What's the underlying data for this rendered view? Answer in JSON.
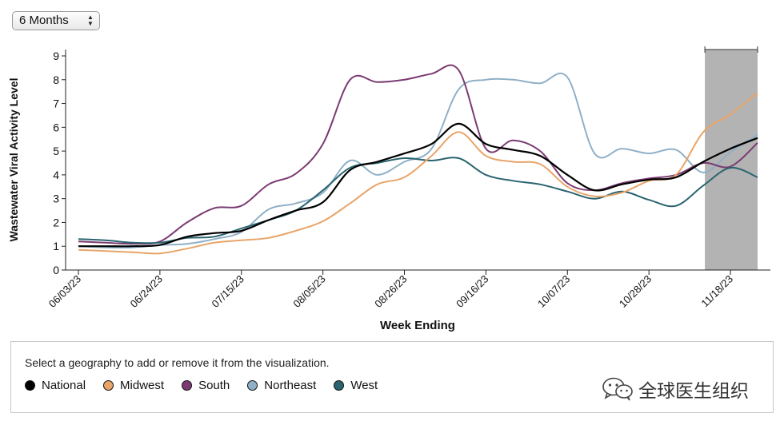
{
  "controls": {
    "range_label": "6 Months"
  },
  "legend": {
    "prompt": "Select a geography to add or remove it from the visualization."
  },
  "watermark": {
    "text": "全球医生组织",
    "icon": "wechat-icon"
  },
  "colors": {
    "National": "#000000",
    "Midwest": "#e8a468",
    "South": "#7b3b72",
    "Northeast": "#8fb0c7",
    "West": "#2a6470",
    "highlight": "#b3b3b3"
  },
  "chart_data": {
    "type": "line",
    "xlabel": "Week Ending",
    "ylabel": "Wastewater Viral Activity Level",
    "ylim": [
      0,
      9
    ],
    "yticks": [
      0,
      1,
      2,
      3,
      4,
      5,
      6,
      7,
      8,
      9
    ],
    "x_tick_labels": [
      "06/03/23",
      "06/24/23",
      "07/15/23",
      "08/05/23",
      "08/26/23",
      "09/16/23",
      "10/07/23",
      "10/28/23",
      "11/18/23"
    ],
    "x": [
      "06/03/23",
      "06/10/23",
      "06/17/23",
      "06/24/23",
      "07/01/23",
      "07/08/23",
      "07/15/23",
      "07/22/23",
      "07/29/23",
      "08/05/23",
      "08/12/23",
      "08/19/23",
      "08/26/23",
      "09/02/23",
      "09/09/23",
      "09/16/23",
      "09/23/23",
      "09/30/23",
      "10/07/23",
      "10/14/23",
      "10/21/23",
      "10/28/23",
      "11/04/23",
      "11/11/23",
      "11/18/23",
      "11/25/23"
    ],
    "highlight_range": [
      "11/11/23",
      "11/25/23"
    ],
    "grid": false,
    "legend_position": "bottom",
    "series": [
      {
        "name": "National",
        "values": [
          1.0,
          1.0,
          1.0,
          1.05,
          1.4,
          1.55,
          1.65,
          2.1,
          2.5,
          2.85,
          4.2,
          4.55,
          4.9,
          5.3,
          6.15,
          5.3,
          5.05,
          4.8,
          4.0,
          3.35,
          3.6,
          3.8,
          3.9,
          4.55,
          5.1,
          5.55
        ]
      },
      {
        "name": "Midwest",
        "values": [
          0.85,
          0.8,
          0.75,
          0.7,
          0.9,
          1.15,
          1.25,
          1.35,
          1.65,
          2.05,
          2.8,
          3.6,
          3.9,
          4.8,
          5.8,
          4.8,
          4.55,
          4.45,
          3.5,
          3.1,
          3.25,
          3.75,
          4.0,
          5.8,
          6.55,
          7.45
        ]
      },
      {
        "name": "South",
        "values": [
          1.2,
          1.15,
          1.1,
          1.2,
          2.0,
          2.6,
          2.7,
          3.6,
          4.05,
          5.3,
          8.0,
          7.9,
          8.0,
          8.25,
          8.4,
          5.1,
          5.45,
          5.0,
          3.65,
          3.35,
          3.65,
          3.85,
          4.0,
          4.5,
          4.35,
          5.35
        ]
      },
      {
        "name": "Northeast",
        "values": [
          1.0,
          0.95,
          0.95,
          1.05,
          1.1,
          1.3,
          1.6,
          2.55,
          2.8,
          3.25,
          4.6,
          4.0,
          4.55,
          5.1,
          7.6,
          8.0,
          8.0,
          7.85,
          8.1,
          4.9,
          5.1,
          4.9,
          5.05,
          4.1,
          4.95,
          5.7
        ]
      },
      {
        "name": "West",
        "values": [
          1.3,
          1.25,
          1.15,
          1.15,
          1.35,
          1.4,
          1.75,
          2.1,
          2.5,
          3.35,
          4.3,
          4.5,
          4.7,
          4.6,
          4.7,
          4.0,
          3.75,
          3.6,
          3.3,
          3.0,
          3.3,
          2.95,
          2.7,
          3.55,
          4.3,
          3.9
        ]
      }
    ]
  }
}
